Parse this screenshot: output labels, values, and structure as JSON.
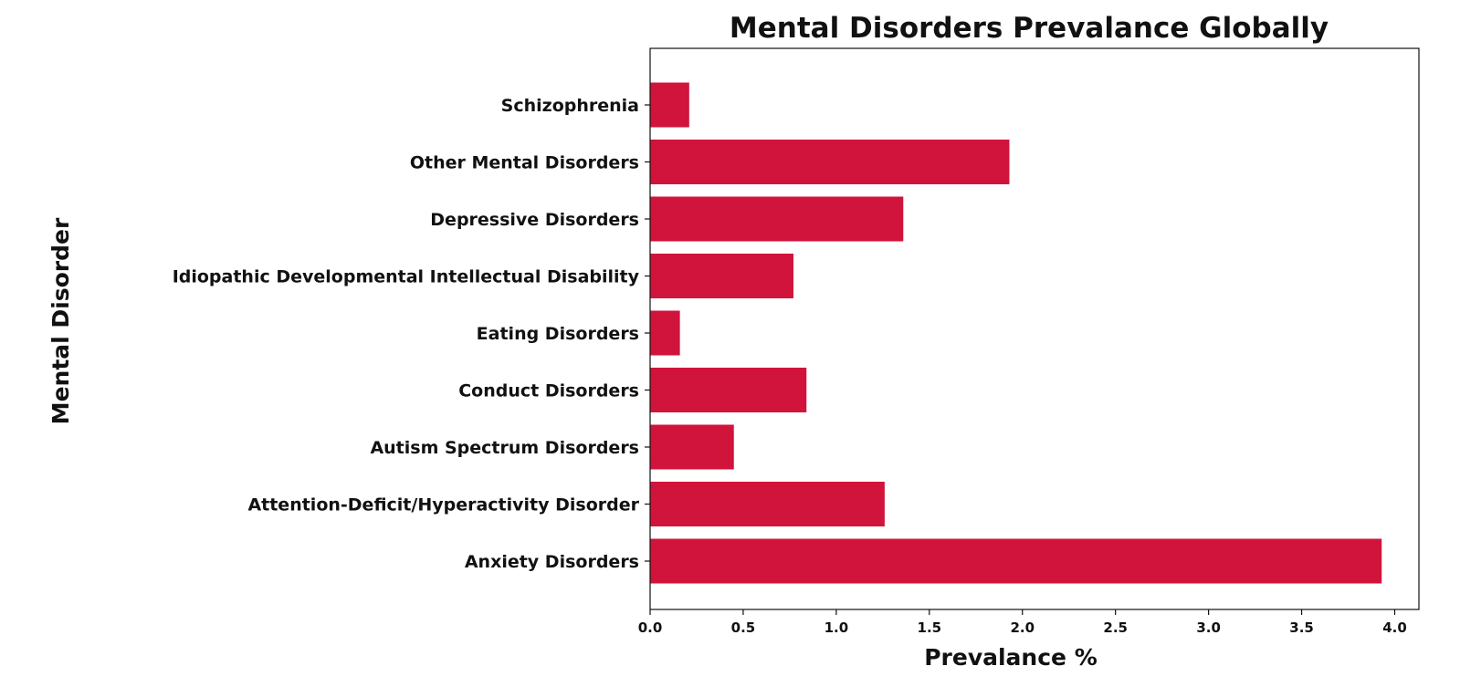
{
  "chart_data": {
    "type": "bar",
    "orientation": "horizontal",
    "title": "Mental Disorders Prevalance Globally",
    "xlabel": "Prevalance %",
    "ylabel": "Mental Disorder",
    "categories": [
      "Schizophrenia",
      "Other Mental Disorders",
      "Depressive Disorders",
      "Idiopathic Developmental Intellectual Disability",
      "Eating Disorders",
      "Conduct Disorders",
      "Autism Spectrum Disorders",
      "Attention-Deficit/Hyperactivity Disorder",
      "Anxiety Disorders"
    ],
    "values": [
      0.21,
      1.93,
      1.36,
      0.77,
      0.16,
      0.84,
      0.45,
      1.26,
      3.93
    ],
    "xlim": [
      0,
      4.13
    ],
    "xticks": [
      "0.0",
      "0.5",
      "1.0",
      "1.5",
      "2.0",
      "2.5",
      "3.0",
      "3.5",
      "4.0"
    ],
    "bar_color": "#d0143c",
    "grid": false,
    "legend": "none"
  }
}
